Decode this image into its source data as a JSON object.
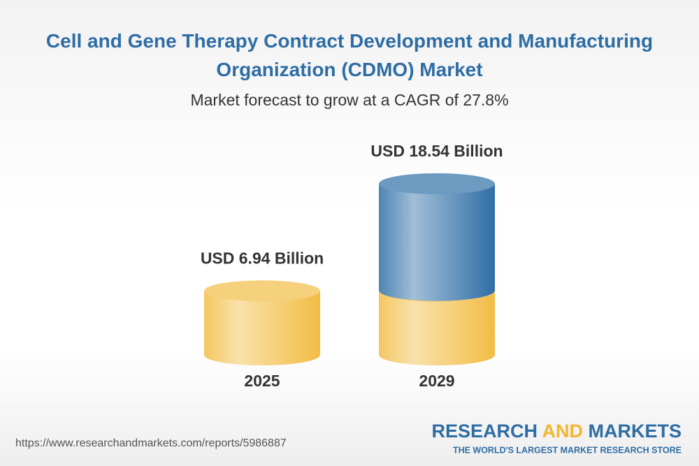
{
  "chart_data": {
    "type": "bar",
    "title": "Cell and Gene Therapy Contract Development and Manufacturing Organization (CDMO) Market",
    "subtitle": "Market forecast to grow at a CAGR of 27.8%",
    "categories": [
      "2025",
      "2029"
    ],
    "values": [
      6.94,
      18.54
    ],
    "value_labels": [
      "USD 6.94 Billion",
      "USD 18.54 Billion"
    ],
    "colors": [
      "#f2bd45",
      "#2f6ea6"
    ]
  },
  "footer": {
    "url": "https://www.researchandmarkets.com/reports/5986887",
    "logo": [
      "RESEARCH",
      "AND",
      "MARKETS"
    ],
    "tagline": "THE WORLD'S LARGEST MARKET RESEARCH STORE"
  }
}
